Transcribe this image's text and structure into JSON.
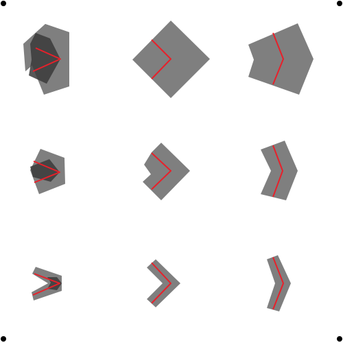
{
  "colors": {
    "background": "#ffffff",
    "shape_fill": "#7f7f7f",
    "overlap_fill": "#3a3a3a",
    "stroke_line": "#e8202a",
    "corner_marker": "#000000"
  },
  "grid": {
    "rows": 3,
    "cols": 3,
    "row_labels": [
      "large",
      "medium",
      "small"
    ],
    "col_labels": [
      "split-wedge",
      "square-elbow",
      "bent-bar"
    ]
  },
  "corner_markers": [
    "top-left",
    "top-right",
    "bottom-left",
    "bottom-right"
  ]
}
